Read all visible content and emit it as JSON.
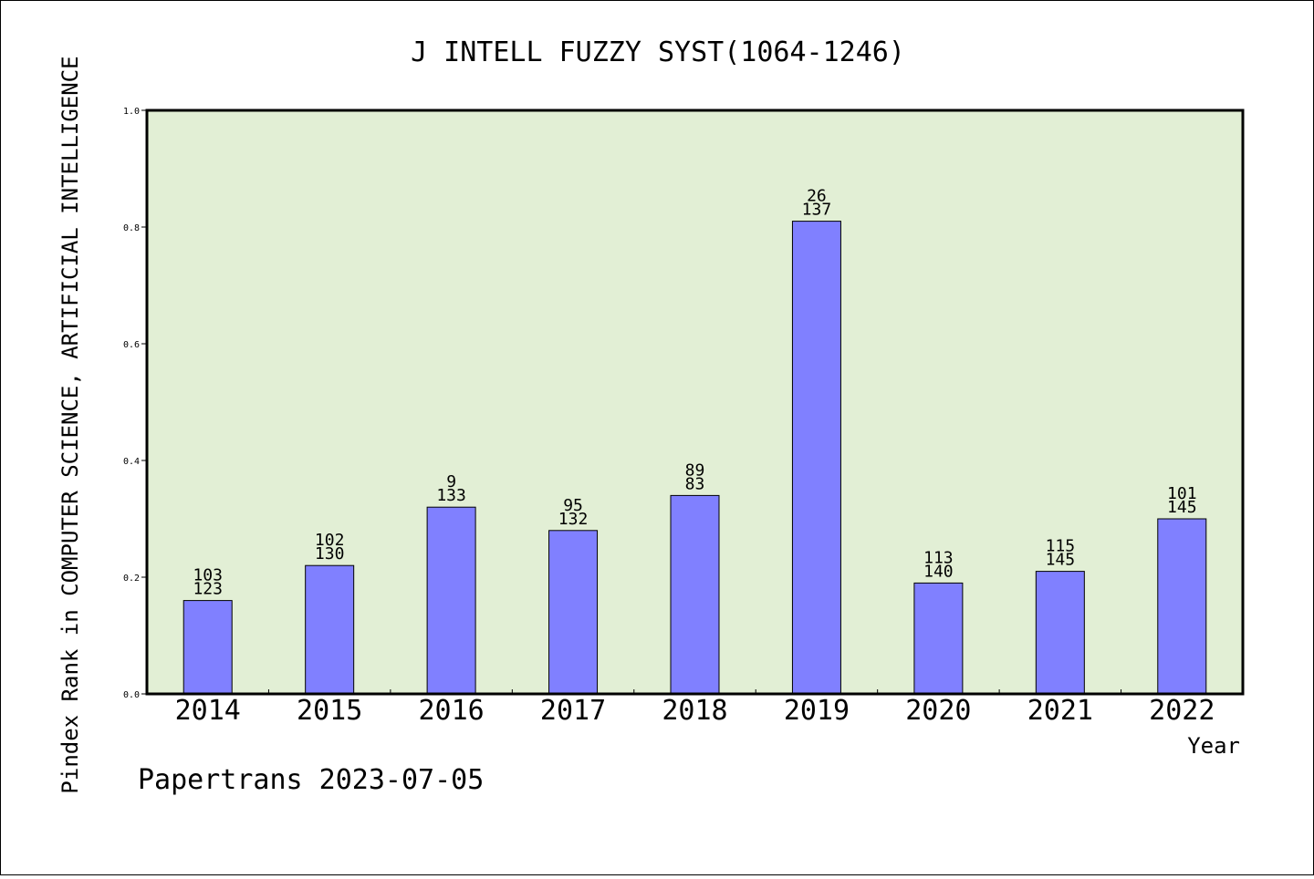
{
  "chart_data": {
    "type": "bar",
    "title": "J INTELL FUZZY SYST(1064-1246)",
    "ylabel": "Pindex Rank in COMPUTER SCIENCE, ARTIFICIAL INTELLIGENCE",
    "xlabel": "Year",
    "ylim": [
      0,
      1.0
    ],
    "yticks": [
      "0.0",
      "0.2",
      "0.4",
      "0.6",
      "0.8",
      "1.0"
    ],
    "categories": [
      "2014",
      "2015",
      "2016",
      "2017",
      "2018",
      "2019",
      "2020",
      "2021",
      "2022"
    ],
    "values": [
      0.16,
      0.22,
      0.32,
      0.28,
      0.34,
      0.81,
      0.19,
      0.21,
      0.3
    ],
    "labels_top": [
      "103",
      "102",
      "9",
      "95",
      "89",
      "26",
      "113",
      "115",
      "101"
    ],
    "labels_bottom": [
      "123",
      "130",
      "133",
      "132",
      "83",
      "137",
      "140",
      "145",
      "145"
    ],
    "grid": false,
    "colors": {
      "bar": "#8080ff",
      "plot_bg": "#e2efd5"
    }
  },
  "footer": "Papertrans 2023-07-05"
}
